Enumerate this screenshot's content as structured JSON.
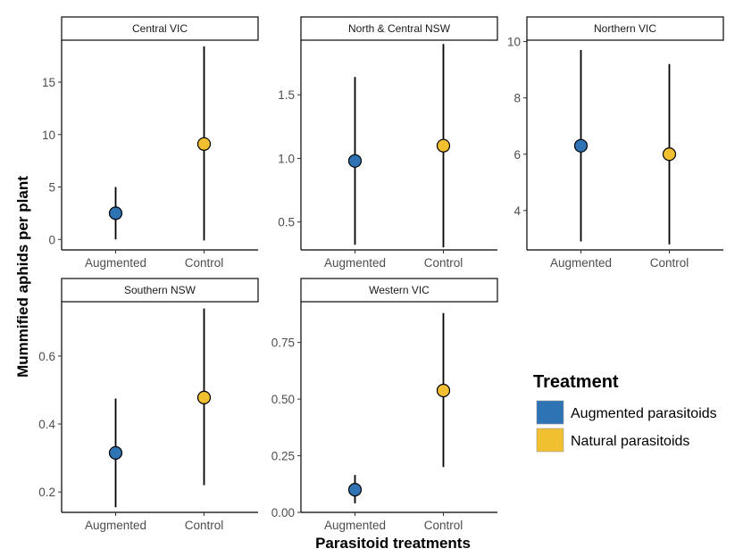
{
  "chart_data": {
    "type": "scatter",
    "ylabel": "Mummified aphids per plant",
    "xlabel": "Parasitoid treatments",
    "categories": [
      "Augmented",
      "Control"
    ],
    "legend": {
      "title": "Treatment",
      "placement": "right",
      "items": [
        {
          "label": "Augmented parasitoids",
          "color": "#2e74b5"
        },
        {
          "label": "Natural parasitoids",
          "color": "#f0c030"
        }
      ]
    },
    "panels": [
      {
        "title": "Central VIC",
        "ylim": [
          -1,
          19
        ],
        "yticks": [
          0,
          5,
          10,
          15
        ],
        "ytick_labels": [
          "0",
          "5",
          "10",
          "15"
        ],
        "points": [
          {
            "category": "Augmented",
            "mean": 2.5,
            "low": 0,
            "high": 5
          },
          {
            "category": "Control",
            "mean": 9.1,
            "low": -0.1,
            "high": 18.4
          }
        ]
      },
      {
        "title": "North & Central NSW",
        "ylim": [
          0.28,
          1.93
        ],
        "yticks": [
          0.5,
          1.0,
          1.5
        ],
        "ytick_labels": [
          "0.5",
          "1.0",
          "1.5"
        ],
        "points": [
          {
            "category": "Augmented",
            "mean": 0.98,
            "low": 0.32,
            "high": 1.64
          },
          {
            "category": "Control",
            "mean": 1.1,
            "low": 0.3,
            "high": 1.9
          }
        ]
      },
      {
        "title": "Northern VIC",
        "ylim": [
          2.6,
          10.05
        ],
        "yticks": [
          4,
          6,
          8,
          10
        ],
        "ytick_labels": [
          "4",
          "6",
          "8",
          "10"
        ],
        "points": [
          {
            "category": "Augmented",
            "mean": 6.3,
            "low": 2.9,
            "high": 9.7
          },
          {
            "category": "Control",
            "mean": 6.0,
            "low": 2.8,
            "high": 9.2
          }
        ]
      },
      {
        "title": "Southern NSW",
        "ylim": [
          0.14,
          0.76
        ],
        "yticks": [
          0.2,
          0.4,
          0.6
        ],
        "ytick_labels": [
          "0.2",
          "0.4",
          "0.6"
        ],
        "points": [
          {
            "category": "Augmented",
            "mean": 0.315,
            "low": 0.155,
            "high": 0.475
          },
          {
            "category": "Control",
            "mean": 0.478,
            "low": 0.22,
            "high": 0.74
          }
        ]
      },
      {
        "title": "Western VIC",
        "ylim": [
          0,
          0.93
        ],
        "yticks": [
          0.0,
          0.25,
          0.5,
          0.75
        ],
        "ytick_labels": [
          "0.00",
          "0.25",
          "0.50",
          "0.75"
        ],
        "points": [
          {
            "category": "Augmented",
            "mean": 0.1,
            "low": 0.04,
            "high": 0.165
          },
          {
            "category": "Control",
            "mean": 0.538,
            "low": 0.2,
            "high": 0.88
          }
        ]
      }
    ]
  }
}
